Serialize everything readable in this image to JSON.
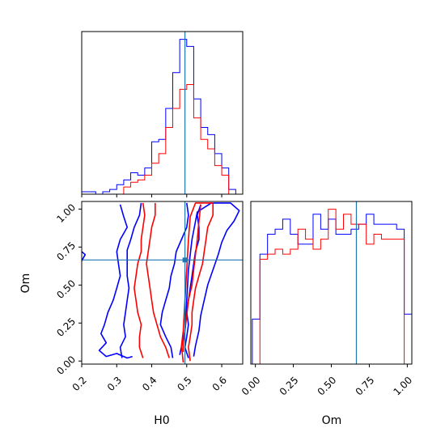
{
  "chart_data": {
    "type": "corner",
    "parameters": [
      "H0",
      "Om"
    ],
    "truth": {
      "H0": 0.495,
      "Om": 0.665
    },
    "series": [
      {
        "color": "#0000ff"
      },
      {
        "color": "#ff0000"
      }
    ],
    "panels": {
      "hist_H0": {
        "type": "histogram",
        "xlim": [
          0.2,
          0.66
        ],
        "bin_edges": [
          0.2,
          0.22,
          0.24,
          0.26,
          0.28,
          0.3,
          0.32,
          0.34,
          0.36,
          0.38,
          0.4,
          0.42,
          0.44,
          0.46,
          0.48,
          0.5,
          0.52,
          0.54,
          0.56,
          0.58,
          0.6,
          0.62,
          0.64
        ],
        "counts_blue": [
          1,
          1,
          0,
          1,
          2,
          4,
          6,
          9,
          8,
          11,
          22,
          23,
          36,
          51,
          65,
          62,
          40,
          28,
          25,
          17,
          11,
          2
        ],
        "counts_red": [
          0,
          0,
          0,
          0,
          0,
          0,
          3,
          5,
          6,
          8,
          13,
          17,
          28,
          36,
          44,
          46,
          32,
          23,
          19,
          12,
          8,
          0
        ]
      },
      "hist_Om": {
        "type": "histogram",
        "xlim": [
          -0.03,
          1.03
        ],
        "xticks": [
          "0.00",
          "0.25",
          "0.50",
          "0.75",
          "1.00"
        ],
        "bin_edges": [
          -0.02,
          0.03,
          0.08,
          0.13,
          0.18,
          0.23,
          0.28,
          0.33,
          0.38,
          0.43,
          0.48,
          0.53,
          0.58,
          0.63,
          0.68,
          0.73,
          0.78,
          0.83,
          0.88,
          0.93,
          0.98,
          1.03
        ],
        "counts_blue": [
          9,
          22,
          26,
          27,
          29,
          26,
          24,
          24,
          30,
          27,
          29,
          26,
          26,
          27,
          28,
          30,
          28,
          28,
          28,
          27,
          10
        ],
        "counts_red": [
          0,
          21,
          22,
          23,
          22,
          23,
          27,
          25,
          23,
          25,
          31,
          27,
          30,
          28,
          28,
          24,
          26,
          25,
          25,
          25,
          0
        ]
      },
      "scatter_H0_Om": {
        "type": "contour",
        "xlim": [
          0.2,
          0.66
        ],
        "ylim": [
          -0.02,
          1.05
        ],
        "xticks": [
          "0.2",
          "0.3",
          "0.4",
          "0.5",
          "0.6"
        ],
        "yticks": [
          "0.00",
          "0.25",
          "0.50",
          "0.75",
          "1.00"
        ],
        "contours_blue": [
          [
            [
              0.31,
              1.03
            ],
            [
              0.32,
              0.95
            ],
            [
              0.33,
              0.88
            ],
            [
              0.31,
              0.8
            ],
            [
              0.3,
              0.72
            ],
            [
              0.305,
              0.64
            ],
            [
              0.31,
              0.56
            ],
            [
              0.3,
              0.48
            ],
            [
              0.29,
              0.4
            ],
            [
              0.275,
              0.32
            ],
            [
              0.265,
              0.24
            ],
            [
              0.255,
              0.18
            ],
            [
              0.27,
              0.12
            ],
            [
              0.25,
              0.07
            ],
            [
              0.27,
              0.03
            ],
            [
              0.3,
              0.05
            ],
            [
              0.33,
              0.02
            ],
            [
              0.345,
              0.03
            ]
          ],
          [
            [
              0.37,
              1.04
            ],
            [
              0.365,
              0.96
            ],
            [
              0.35,
              0.88
            ],
            [
              0.34,
              0.8
            ],
            [
              0.33,
              0.73
            ],
            [
              0.33,
              0.64
            ],
            [
              0.33,
              0.56
            ],
            [
              0.335,
              0.48
            ],
            [
              0.33,
              0.4
            ],
            [
              0.325,
              0.32
            ],
            [
              0.32,
              0.24
            ],
            [
              0.325,
              0.16
            ],
            [
              0.31,
              0.09
            ],
            [
              0.315,
              0.02
            ]
          ],
          [
            [
              0.2,
              0.72
            ],
            [
              0.21,
              0.7
            ],
            [
              0.2,
              0.66
            ]
          ],
          [
            [
              0.5,
              1.04
            ],
            [
              0.505,
              0.96
            ],
            [
              0.5,
              0.88
            ],
            [
              0.485,
              0.8
            ],
            [
              0.47,
              0.72
            ],
            [
              0.465,
              0.64
            ],
            [
              0.455,
              0.56
            ],
            [
              0.45,
              0.48
            ],
            [
              0.44,
              0.4
            ],
            [
              0.43,
              0.32
            ],
            [
              0.425,
              0.24
            ],
            [
              0.44,
              0.16
            ],
            [
              0.455,
              0.09
            ],
            [
              0.46,
              0.02
            ]
          ],
          [
            [
              0.54,
              1.03
            ],
            [
              0.53,
              0.96
            ],
            [
              0.535,
              0.88
            ],
            [
              0.535,
              0.8
            ],
            [
              0.525,
              0.72
            ],
            [
              0.52,
              0.64
            ],
            [
              0.515,
              0.56
            ],
            [
              0.51,
              0.48
            ],
            [
              0.505,
              0.4
            ],
            [
              0.5,
              0.32
            ],
            [
              0.505,
              0.24
            ],
            [
              0.5,
              0.16
            ],
            [
              0.495,
              0.09
            ],
            [
              0.505,
              0.02
            ]
          ],
          [
            [
              0.48,
              0.04
            ],
            [
              0.495,
              0.2
            ],
            [
              0.5,
              0.4
            ],
            [
              0.505,
              0.6
            ],
            [
              0.515,
              0.8
            ],
            [
              0.53,
              0.98
            ],
            [
              0.57,
              1.04
            ],
            [
              0.625,
              1.04
            ],
            [
              0.65,
              0.99
            ],
            [
              0.635,
              0.92
            ],
            [
              0.615,
              0.86
            ],
            [
              0.6,
              0.78
            ],
            [
              0.59,
              0.7
            ],
            [
              0.575,
              0.6
            ],
            [
              0.56,
              0.5
            ],
            [
              0.55,
              0.4
            ],
            [
              0.54,
              0.3
            ],
            [
              0.535,
              0.2
            ],
            [
              0.525,
              0.1
            ],
            [
              0.52,
              0.03
            ]
          ]
        ],
        "contours_red": [
          [
            [
              0.375,
              1.04
            ],
            [
              0.38,
              0.96
            ],
            [
              0.375,
              0.88
            ],
            [
              0.37,
              0.8
            ],
            [
              0.37,
              0.72
            ],
            [
              0.36,
              0.64
            ],
            [
              0.355,
              0.56
            ],
            [
              0.35,
              0.48
            ],
            [
              0.355,
              0.4
            ],
            [
              0.36,
              0.32
            ],
            [
              0.37,
              0.24
            ],
            [
              0.365,
              0.16
            ],
            [
              0.365,
              0.09
            ],
            [
              0.375,
              0.02
            ]
          ],
          [
            [
              0.41,
              1.04
            ],
            [
              0.41,
              0.96
            ],
            [
              0.4,
              0.88
            ],
            [
              0.395,
              0.8
            ],
            [
              0.39,
              0.72
            ],
            [
              0.385,
              0.64
            ],
            [
              0.39,
              0.56
            ],
            [
              0.395,
              0.48
            ],
            [
              0.4,
              0.4
            ],
            [
              0.405,
              0.32
            ],
            [
              0.415,
              0.24
            ],
            [
              0.425,
              0.16
            ],
            [
              0.44,
              0.09
            ],
            [
              0.45,
              0.02
            ]
          ],
          [
            [
              0.49,
              -0.01
            ],
            [
              0.485,
              0.1
            ],
            [
              0.49,
              0.2
            ],
            [
              0.495,
              0.4
            ],
            [
              0.5,
              0.6
            ],
            [
              0.505,
              0.8
            ],
            [
              0.51,
              0.95
            ],
            [
              0.525,
              1.04
            ],
            [
              0.575,
              1.04
            ],
            [
              0.575,
              0.96
            ],
            [
              0.56,
              0.88
            ],
            [
              0.555,
              0.8
            ],
            [
              0.55,
              0.72
            ],
            [
              0.545,
              0.64
            ],
            [
              0.535,
              0.56
            ],
            [
              0.525,
              0.48
            ],
            [
              0.52,
              0.4
            ],
            [
              0.515,
              0.32
            ],
            [
              0.515,
              0.24
            ],
            [
              0.51,
              0.16
            ],
            [
              0.505,
              0.09
            ],
            [
              0.51,
              0.0
            ]
          ],
          [
            [
              0.54,
              1.03
            ],
            [
              0.535,
              0.92
            ],
            [
              0.53,
              0.8
            ],
            [
              0.525,
              0.7
            ],
            [
              0.52,
              0.6
            ],
            [
              0.515,
              0.5
            ],
            [
              0.505,
              0.4
            ],
            [
              0.5,
              0.3
            ],
            [
              0.495,
              0.2
            ],
            [
              0.49,
              0.12
            ],
            [
              0.49,
              0.06
            ]
          ]
        ]
      }
    },
    "labels": {
      "x_left": "H0",
      "x_right": "Om",
      "y_bottom": "Om",
      "hist_H0_xticks": [
        "",
        "",
        "",
        "",
        ""
      ],
      "hist_Om_yticks": []
    }
  }
}
